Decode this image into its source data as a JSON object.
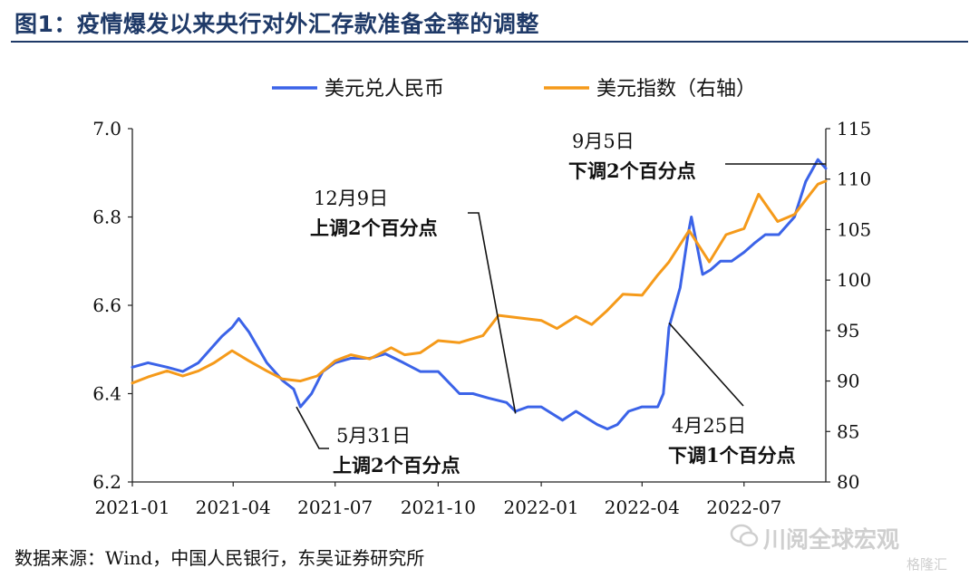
{
  "title": "图1：疫情爆发以来央行对外汇存款准备金率的调整",
  "source": "数据来源：Wind，中国人民银行，东吴证券研究所",
  "watermark": "川阅全球宏观",
  "watermark_small": "格隆汇",
  "chart_data": {
    "type": "line",
    "title": "图1：疫情爆发以来央行对外汇存款准备金率的调整",
    "x_ticks": [
      "2021-01",
      "2021-04",
      "2021-07",
      "2021-10",
      "2022-01",
      "2022-04",
      "2022-07"
    ],
    "x_range": [
      "2021-01-01",
      "2022-09-12"
    ],
    "left_axis": {
      "range": [
        6.2,
        7.0
      ],
      "ticks": [
        "6.2",
        "6.4",
        "6.6",
        "6.8",
        "7.0"
      ]
    },
    "right_axis": {
      "range": [
        80,
        115
      ],
      "ticks": [
        "80",
        "85",
        "90",
        "95",
        "100",
        "105",
        "110",
        "115"
      ]
    },
    "legend_position": "top-center",
    "series": [
      {
        "name": "美元兑人民币",
        "axis": "left",
        "color": "#3b63e8",
        "points": [
          [
            "2021-01-01",
            6.46
          ],
          [
            "2021-01-15",
            6.47
          ],
          [
            "2021-02-01",
            6.46
          ],
          [
            "2021-02-15",
            6.45
          ],
          [
            "2021-03-01",
            6.47
          ],
          [
            "2021-03-15",
            6.51
          ],
          [
            "2021-03-22",
            6.53
          ],
          [
            "2021-03-31",
            6.55
          ],
          [
            "2021-04-06",
            6.57
          ],
          [
            "2021-04-15",
            6.54
          ],
          [
            "2021-05-01",
            6.47
          ],
          [
            "2021-05-15",
            6.43
          ],
          [
            "2021-05-25",
            6.41
          ],
          [
            "2021-05-31",
            6.37
          ],
          [
            "2021-06-10",
            6.4
          ],
          [
            "2021-06-20",
            6.45
          ],
          [
            "2021-07-01",
            6.47
          ],
          [
            "2021-07-15",
            6.48
          ],
          [
            "2021-08-01",
            6.48
          ],
          [
            "2021-08-15",
            6.49
          ],
          [
            "2021-08-31",
            6.47
          ],
          [
            "2021-09-15",
            6.45
          ],
          [
            "2021-10-01",
            6.45
          ],
          [
            "2021-10-20",
            6.4
          ],
          [
            "2021-11-01",
            6.4
          ],
          [
            "2021-11-15",
            6.39
          ],
          [
            "2021-12-01",
            6.38
          ],
          [
            "2021-12-09",
            6.36
          ],
          [
            "2021-12-20",
            6.37
          ],
          [
            "2022-01-01",
            6.37
          ],
          [
            "2022-01-20",
            6.34
          ],
          [
            "2022-02-01",
            6.36
          ],
          [
            "2022-02-20",
            6.33
          ],
          [
            "2022-03-01",
            6.32
          ],
          [
            "2022-03-10",
            6.33
          ],
          [
            "2022-03-20",
            6.36
          ],
          [
            "2022-04-01",
            6.37
          ],
          [
            "2022-04-15",
            6.37
          ],
          [
            "2022-04-20",
            6.4
          ],
          [
            "2022-04-25",
            6.55
          ],
          [
            "2022-05-05",
            6.64
          ],
          [
            "2022-05-12",
            6.76
          ],
          [
            "2022-05-15",
            6.8
          ],
          [
            "2022-05-25",
            6.67
          ],
          [
            "2022-06-01",
            6.68
          ],
          [
            "2022-06-10",
            6.7
          ],
          [
            "2022-06-20",
            6.7
          ],
          [
            "2022-07-01",
            6.72
          ],
          [
            "2022-07-10",
            6.74
          ],
          [
            "2022-07-20",
            6.76
          ],
          [
            "2022-08-01",
            6.76
          ],
          [
            "2022-08-15",
            6.8
          ],
          [
            "2022-08-25",
            6.88
          ],
          [
            "2022-09-05",
            6.93
          ],
          [
            "2022-09-12",
            6.91
          ]
        ]
      },
      {
        "name": "美元指数（右轴）",
        "axis": "right",
        "color": "#f59a1a",
        "points": [
          [
            "2021-01-01",
            89.8
          ],
          [
            "2021-01-15",
            90.4
          ],
          [
            "2021-02-01",
            91.0
          ],
          [
            "2021-02-15",
            90.5
          ],
          [
            "2021-03-01",
            91.0
          ],
          [
            "2021-03-15",
            91.8
          ],
          [
            "2021-03-31",
            93.0
          ],
          [
            "2021-04-15",
            92.0
          ],
          [
            "2021-05-01",
            91.0
          ],
          [
            "2021-05-15",
            90.2
          ],
          [
            "2021-05-31",
            90.0
          ],
          [
            "2021-06-15",
            90.5
          ],
          [
            "2021-07-01",
            92.0
          ],
          [
            "2021-07-15",
            92.6
          ],
          [
            "2021-08-01",
            92.2
          ],
          [
            "2021-08-20",
            93.3
          ],
          [
            "2021-09-01",
            92.6
          ],
          [
            "2021-09-15",
            92.8
          ],
          [
            "2021-10-01",
            94.0
          ],
          [
            "2021-10-20",
            93.8
          ],
          [
            "2021-11-10",
            94.5
          ],
          [
            "2021-11-24",
            96.5
          ],
          [
            "2021-12-09",
            96.3
          ],
          [
            "2022-01-01",
            96.0
          ],
          [
            "2022-01-15",
            95.2
          ],
          [
            "2022-02-01",
            96.4
          ],
          [
            "2022-02-15",
            95.6
          ],
          [
            "2022-03-01",
            97.0
          ],
          [
            "2022-03-15",
            98.6
          ],
          [
            "2022-04-01",
            98.5
          ],
          [
            "2022-04-15",
            100.5
          ],
          [
            "2022-04-25",
            101.8
          ],
          [
            "2022-05-13",
            104.9
          ],
          [
            "2022-05-31",
            101.8
          ],
          [
            "2022-06-15",
            104.5
          ],
          [
            "2022-07-01",
            105.1
          ],
          [
            "2022-07-14",
            108.5
          ],
          [
            "2022-07-31",
            105.8
          ],
          [
            "2022-08-15",
            106.5
          ],
          [
            "2022-08-31",
            108.8
          ],
          [
            "2022-09-05",
            109.5
          ],
          [
            "2022-09-12",
            109.8
          ]
        ]
      }
    ],
    "annotations": [
      {
        "line1": "5月31日",
        "line2": "上调2个百分点"
      },
      {
        "line1": "12月9日",
        "line2": "上调2个百分点"
      },
      {
        "line1": "4月25日",
        "line2": "下调1个百分点"
      },
      {
        "line1": "9月5日",
        "line2": "下调2个百分点"
      }
    ]
  }
}
